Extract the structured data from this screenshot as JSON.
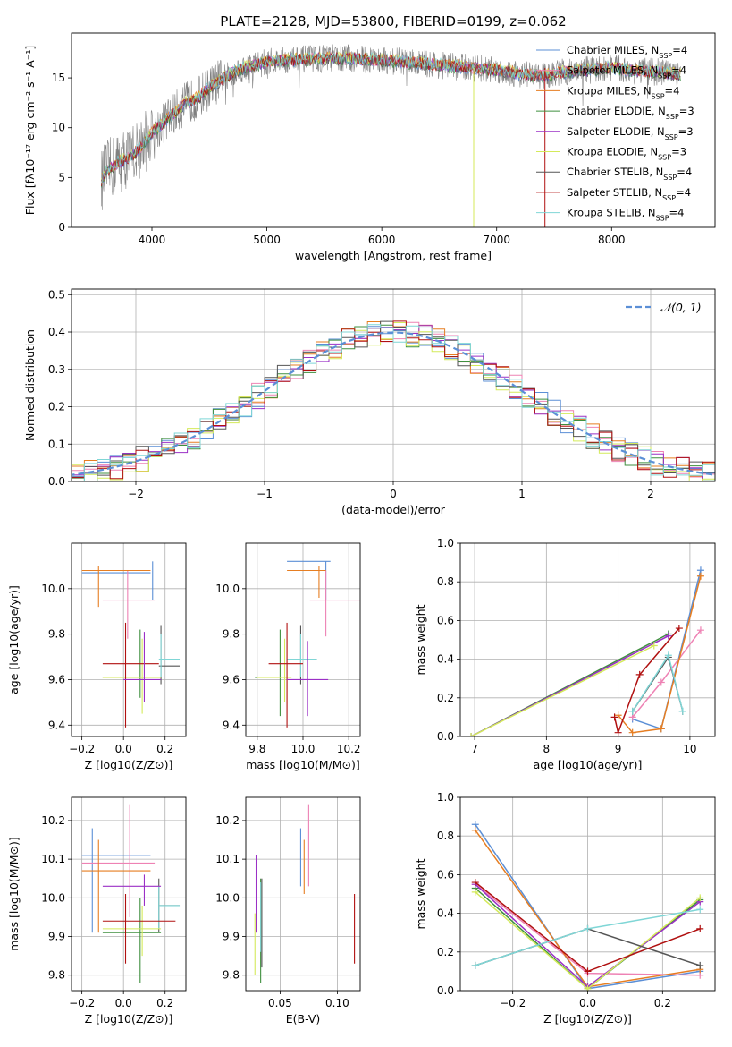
{
  "figure": {
    "title": "PLATE=2128, MJD=53800, FIBERID=0199, z=0.062",
    "colors": [
      "#5b8fd6",
      "#ee82b4",
      "#e67e22",
      "#3f8f3f",
      "#9b30c6",
      "#d4ea5a",
      "#555555",
      "#b01010",
      "#7fd6d6"
    ]
  },
  "chart_data": [
    {
      "id": "spectrum",
      "type": "line",
      "xlabel": "wavelength [Angstrom, rest frame]",
      "ylabel": "Flux [fλ10⁻¹⁷ erg cm⁻² s⁻¹ A⁻¹]",
      "xlim": [
        3300,
        8900
      ],
      "ylim": [
        0,
        19.5
      ],
      "xticks": [
        4000,
        5000,
        6000,
        7000,
        8000
      ],
      "yticks": [
        0,
        5,
        10,
        15
      ],
      "data_trend": {
        "x": [
          3550,
          3600,
          3700,
          3800,
          3900,
          4000,
          4100,
          4200,
          4300,
          4400,
          4500,
          4600,
          4700,
          4800,
          4900,
          5000,
          5200,
          5400,
          5600,
          5800,
          6000,
          6200,
          6400,
          6600,
          6800,
          7000,
          7200,
          7400,
          7600,
          7800,
          8000,
          8200,
          8400,
          8600
        ],
        "y": [
          4.5,
          5.5,
          6.5,
          7.0,
          8.0,
          9.5,
          10.5,
          11.5,
          12.5,
          13.0,
          14.0,
          14.8,
          15.5,
          16.0,
          16.3,
          16.6,
          16.8,
          16.9,
          17.0,
          16.9,
          16.8,
          16.6,
          16.4,
          16.2,
          16.0,
          15.8,
          15.4,
          15.2,
          15.6,
          15.8,
          16.0,
          15.7,
          15.6,
          15.3
        ]
      },
      "legend_loc": "upper right",
      "legend": [
        "Chabrier MILES, N_SSP=4",
        "Salpeter MILES, N_SSP=4",
        "Kroupa MILES, N_SSP=4",
        "Chabrier ELODIE, N_SSP=3",
        "Salpeter ELODIE, N_SSP=3",
        "Kroupa ELODIE, N_SSP=3",
        "Chabrier STELIB, N_SSP=4",
        "Salpeter STELIB, N_SSP=4",
        "Kroupa STELIB, N_SSP=4"
      ]
    },
    {
      "id": "residuals",
      "type": "area",
      "xlabel": "(data-model)/error",
      "ylabel": "Normed distribution",
      "xlim": [
        -2.5,
        2.5
      ],
      "ylim": [
        0,
        0.515
      ],
      "xticks": [
        -2,
        -1,
        0,
        1,
        2
      ],
      "xtick_labels": [
        "−2",
        "−1",
        "0",
        "1",
        "2"
      ],
      "yticks": [
        0.0,
        0.1,
        0.2,
        0.3,
        0.4,
        0.5
      ],
      "ytick_labels": [
        "0.0",
        "0.1",
        "0.2",
        "0.3",
        "0.4",
        "0.5"
      ],
      "grid": true,
      "gauss_label": "𝒩(0, 1)",
      "legend_loc": "upper right"
    },
    {
      "id": "age_vs_Z",
      "type": "scatter",
      "xlabel": "Z [log10(Z/Z⊙)]",
      "ylabel": "age  [log10(age/yr)]",
      "xlim": [
        -0.25,
        0.3
      ],
      "ylim": [
        9.35,
        10.2
      ],
      "xticks": [
        -0.2,
        0.0,
        0.2
      ],
      "xtick_labels": [
        "−0.2",
        "0.0",
        "0.2"
      ],
      "yticks": [
        9.4,
        9.6,
        9.8,
        10.0
      ],
      "ytick_labels": [
        "9.4",
        "9.6",
        "9.8",
        "10.0"
      ],
      "grid": true
    },
    {
      "id": "age_vs_mass",
      "type": "scatter",
      "xlabel": "mass [log10(M/M⊙)]",
      "xlim": [
        9.75,
        10.25
      ],
      "ylim": [
        9.35,
        10.2
      ],
      "xticks": [
        9.8,
        10.0,
        10.2
      ],
      "xtick_labels": [
        "9.8",
        "10.0",
        "10.2"
      ],
      "yticks": [
        9.4,
        9.6,
        9.8,
        10.0
      ],
      "ytick_labels": [
        "9.4",
        "9.6",
        "9.8",
        "10.0"
      ],
      "grid": true
    },
    {
      "id": "weight_vs_age",
      "type": "line",
      "xlabel": "age  [log10(age/yr)]",
      "ylabel": "mass weight",
      "xlim": [
        6.8,
        10.35
      ],
      "ylim": [
        0,
        1.0
      ],
      "xticks": [
        7,
        8,
        9,
        10
      ],
      "xtick_labels": [
        "7",
        "8",
        "9",
        "10"
      ],
      "yticks": [
        0.0,
        0.2,
        0.4,
        0.6,
        0.8,
        1.0
      ],
      "ytick_labels": [
        "0.0",
        "0.2",
        "0.4",
        "0.6",
        "0.8",
        "1.0"
      ],
      "grid": true,
      "series": [
        {
          "x": [
            9.2,
            9.6,
            10.15
          ],
          "y": [
            0.09,
            0.04,
            0.86
          ]
        },
        {
          "x": [
            9.2,
            9.6,
            10.15
          ],
          "y": [
            0.1,
            0.28,
            0.55
          ]
        },
        {
          "x": [
            9.0,
            9.2,
            9.6,
            10.15
          ],
          "y": [
            0.11,
            0.02,
            0.04,
            0.83
          ]
        },
        {
          "x": [
            6.95,
            9.7
          ],
          "y": [
            0.0,
            0.53
          ]
        },
        {
          "x": [
            6.95,
            9.7
          ],
          "y": [
            0.0,
            0.52
          ]
        },
        {
          "x": [
            6.95,
            9.5
          ],
          "y": [
            0.0,
            0.47
          ]
        },
        {
          "x": [
            9.2,
            9.7,
            9.9
          ],
          "y": [
            0.13,
            0.41,
            0.13
          ]
        },
        {
          "x": [
            8.95,
            9.0,
            9.3,
            9.85
          ],
          "y": [
            0.1,
            0.02,
            0.32,
            0.56
          ]
        },
        {
          "x": [
            9.2,
            9.7,
            9.9
          ],
          "y": [
            0.13,
            0.42,
            0.13
          ]
        }
      ]
    },
    {
      "id": "mass_vs_Z",
      "type": "scatter",
      "xlabel": "Z [log10(Z/Z⊙)]",
      "ylabel": "mass [log10(M/M⊙)]",
      "xlim": [
        -0.25,
        0.3
      ],
      "ylim": [
        9.76,
        10.26
      ],
      "xticks": [
        -0.2,
        0.0,
        0.2
      ],
      "xtick_labels": [
        "−0.2",
        "0.0",
        "0.2"
      ],
      "yticks": [
        9.8,
        9.9,
        10.0,
        10.1,
        10.2
      ],
      "ytick_labels": [
        "9.8",
        "9.9",
        "10.0",
        "10.1",
        "10.2"
      ],
      "grid": true
    },
    {
      "id": "mass_vs_ebv",
      "type": "scatter",
      "xlabel": "E(B-V)",
      "xlim": [
        0.02,
        0.12
      ],
      "ylim": [
        9.76,
        10.26
      ],
      "xticks": [
        0.05,
        0.1
      ],
      "xtick_labels": [
        "0.05",
        "0.10"
      ],
      "yticks": [
        9.8,
        9.9,
        10.0,
        10.1,
        10.2
      ],
      "ytick_labels": [
        "9.8",
        "9.9",
        "10.0",
        "10.1",
        "10.2"
      ],
      "grid": true
    },
    {
      "id": "weight_vs_Z",
      "type": "line",
      "xlabel": "Z [log10(Z/Z⊙)]",
      "ylabel": "mass weight",
      "xlim": [
        -0.34,
        0.34
      ],
      "ylim": [
        0,
        1.0
      ],
      "xticks": [
        -0.2,
        0.0,
        0.2
      ],
      "xtick_labels": [
        "−0.2",
        "0.0",
        "0.2"
      ],
      "yticks": [
        0.0,
        0.2,
        0.4,
        0.6,
        0.8,
        1.0
      ],
      "ytick_labels": [
        "0.0",
        "0.2",
        "0.4",
        "0.6",
        "0.8",
        "1.0"
      ],
      "grid": true,
      "series": [
        {
          "x": [
            -0.3,
            0.0,
            0.3
          ],
          "y": [
            0.86,
            0.01,
            0.1
          ]
        },
        {
          "x": [
            -0.3,
            0.0,
            0.3
          ],
          "y": [
            0.55,
            0.09,
            0.08
          ]
        },
        {
          "x": [
            -0.3,
            0.0,
            0.3
          ],
          "y": [
            0.83,
            0.02,
            0.11
          ]
        },
        {
          "x": [
            -0.3,
            0.0,
            0.3
          ],
          "y": [
            0.53,
            0.01,
            0.47
          ]
        },
        {
          "x": [
            -0.3,
            0.0,
            0.3
          ],
          "y": [
            0.55,
            0.02,
            0.46
          ]
        },
        {
          "x": [
            -0.3,
            0.0,
            0.3
          ],
          "y": [
            0.51,
            0.01,
            0.48
          ]
        },
        {
          "x": [
            -0.3,
            0.0,
            0.3
          ],
          "y": [
            0.13,
            0.32,
            0.13
          ]
        },
        {
          "x": [
            -0.3,
            0.0,
            0.3
          ],
          "y": [
            0.56,
            0.1,
            0.32
          ]
        },
        {
          "x": [
            -0.3,
            0.0,
            0.3
          ],
          "y": [
            0.13,
            0.32,
            0.42
          ]
        }
      ]
    }
  ]
}
